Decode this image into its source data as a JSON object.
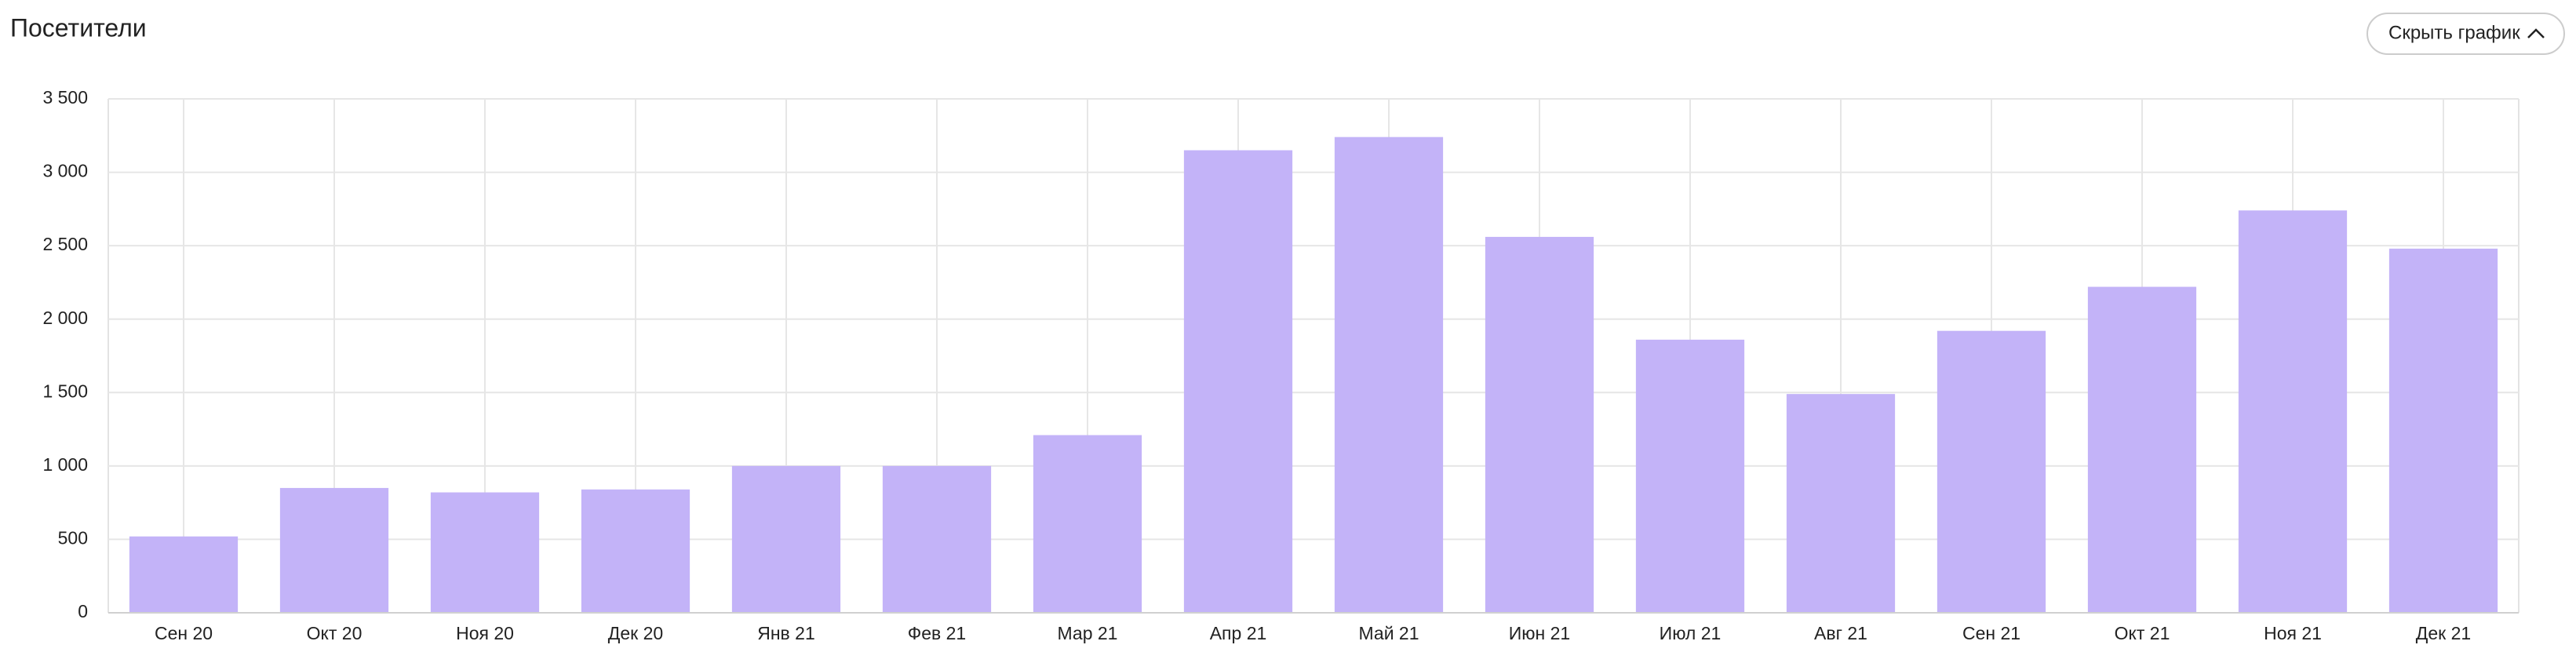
{
  "header": {
    "title": "Посетители",
    "button": "Скрыть график"
  },
  "chart_data": {
    "type": "bar",
    "categories": [
      "Сен 20",
      "Окт 20",
      "Ноя 20",
      "Дек 20",
      "Янв 21",
      "Фев 21",
      "Мар 21",
      "Апр 21",
      "Май 21",
      "Июн 21",
      "Июл 21",
      "Авг 21",
      "Сен 21",
      "Окт 21",
      "Ноя 21",
      "Дек 21"
    ],
    "values": [
      520,
      850,
      820,
      840,
      1000,
      1000,
      1210,
      3150,
      3240,
      2560,
      1860,
      1490,
      1920,
      2220,
      2740,
      2480
    ],
    "color": "#c3b3f8",
    "ylim": [
      0,
      3500
    ],
    "yticks": [
      0,
      500,
      {
        "value": 1000,
        "label": "1 000"
      },
      {
        "value": 1500,
        "label": "1 500"
      },
      {
        "value": 2000,
        "label": "2 000"
      },
      {
        "value": 2500,
        "label": "2 500"
      },
      {
        "value": 3000,
        "label": "3 000"
      },
      {
        "value": 3500,
        "label": "3 500"
      }
    ],
    "grid": true
  }
}
